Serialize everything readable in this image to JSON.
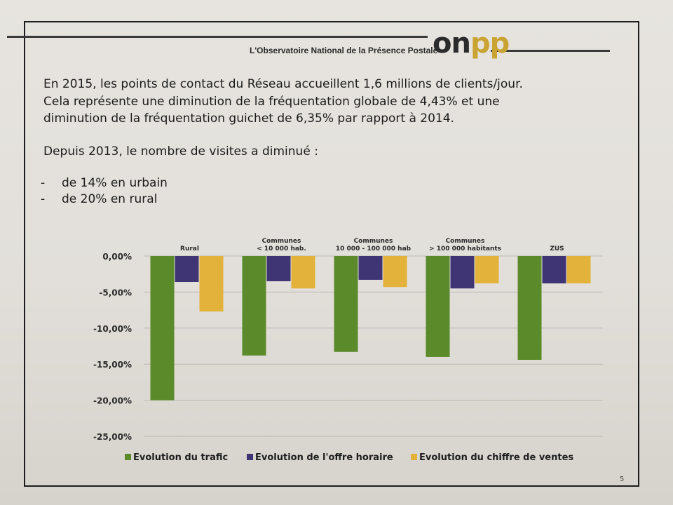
{
  "header": {
    "brand": "L'Observatoire National de la Présence Postale",
    "logo_o": "o",
    "logo_n": "n",
    "logo_p": "pp"
  },
  "intro": {
    "line1": "En 2015, les points de contact du Réseau accueillent 1,6 millions de clients/jour.",
    "line2": "Cela représente une diminution de la fréquentation globale de 4,43% et une",
    "line3": "diminution de la fréquentation guichet de 6,35% par rapport à 2014."
  },
  "since": "Depuis 2013, le nombre de visites a diminué :",
  "bullets": [
    {
      "dash": "-",
      "text": "de 14% en urbain"
    },
    {
      "dash": "-",
      "text": "de 20% en rural"
    }
  ],
  "page_number": "5",
  "chart_data": {
    "type": "bar",
    "categories": [
      "Rural",
      "Communes\n< 10 000 hab.",
      "Communes\n10 000 - 100 000 hab",
      "Communes\n> 100 000 habitants",
      "ZUS"
    ],
    "series": [
      {
        "name": "Evolution du trafic",
        "color": "#5a8a2a",
        "values": [
          -20.0,
          -13.8,
          -13.3,
          -14.0,
          -14.4
        ]
      },
      {
        "name": "Evolution de l'offre horaire",
        "color": "#3f3474",
        "values": [
          -3.6,
          -3.5,
          -3.3,
          -4.5,
          -3.8
        ]
      },
      {
        "name": "Evolution du chiffre de ventes",
        "color": "#e2b23a",
        "values": [
          -7.7,
          -4.5,
          -4.3,
          -3.8,
          -3.8
        ]
      }
    ],
    "yticks": [
      "0,00%",
      "-5,00%",
      "-10,00%",
      "-15,00%",
      "-20,00%",
      "-25,00%"
    ],
    "ylim": [
      -25,
      0
    ],
    "grid": true,
    "legend": "bottom"
  }
}
